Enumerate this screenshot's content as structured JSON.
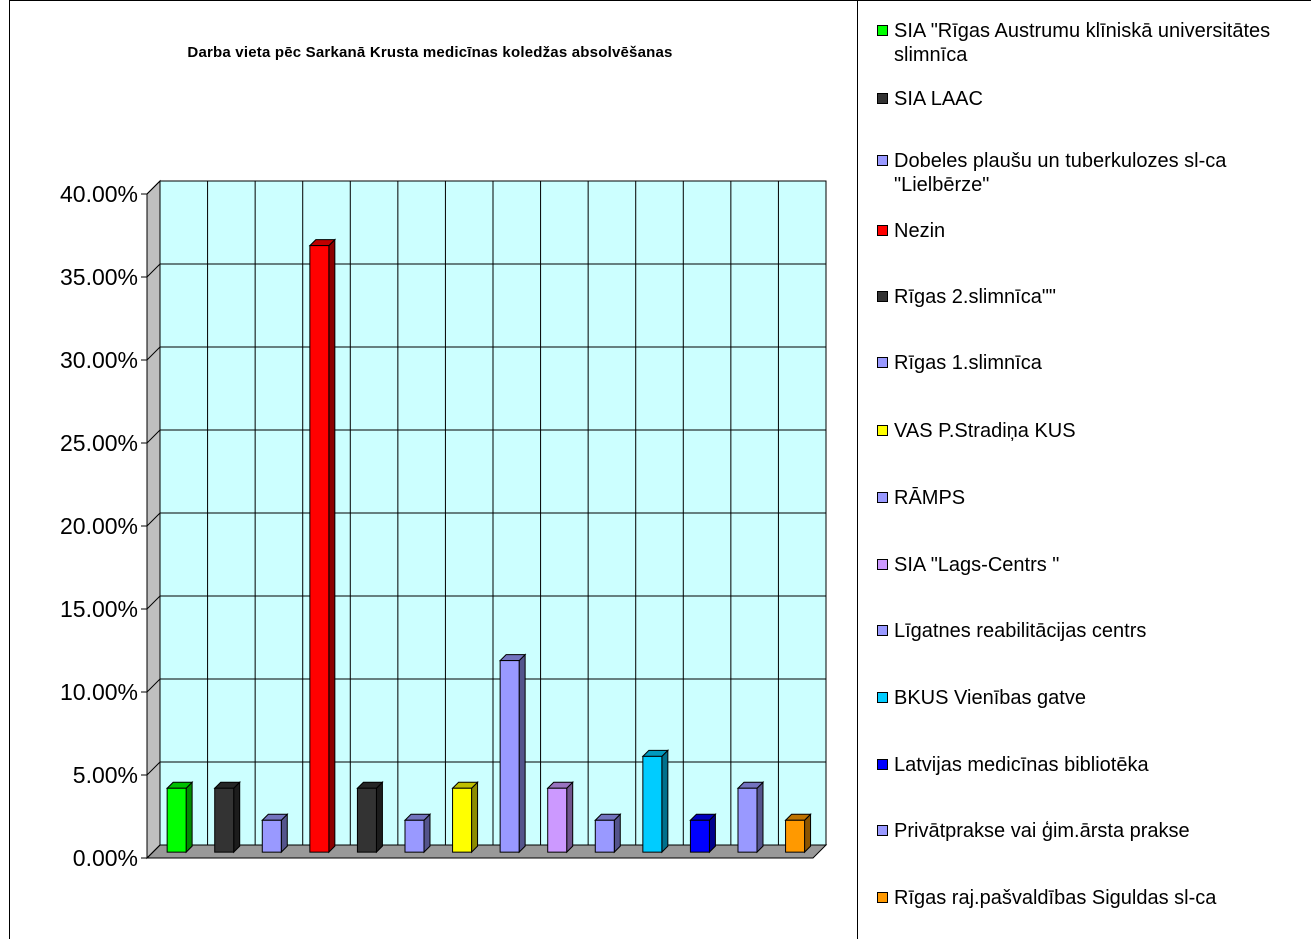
{
  "chart_data": {
    "type": "bar",
    "title": "Darba vieta pēc Sarkanā Krusta medicīnas koledžas absolvēšanas",
    "xlabel": "",
    "ylabel": "",
    "ylim": [
      0,
      40
    ],
    "yticks": [
      "0.00%",
      "5.00%",
      "10.00%",
      "15.00%",
      "20.00%",
      "25.00%",
      "30.00%",
      "35.00%",
      "40.00%"
    ],
    "grid": true,
    "legend_position": "right",
    "plot_background": "#ccffff",
    "categories": [
      "SIA \"Rīgas Austrumu klīniskā universitātes slimnīca",
      "SIA LAAC",
      "Dobeles plaušu un tuberkulozes sl-ca \"Lielbērze\"",
      "Nezin",
      "Rīgas 2.slimnīca\"\"",
      "Rīgas 1.slimnīca",
      "VAS P.Stradiņa KUS",
      "RĀMPS",
      "SIA \"Lags-Centrs \"",
      "Līgatnes reabilitācijas centrs",
      "BKUS Vienības gatve",
      "Latvijas medicīnas bibliotēka",
      "Privātprakse vai ģim.ārsta prakse",
      "Rīgas raj.pašvaldības Siguldas sl-ca"
    ],
    "values": [
      3.85,
      3.85,
      1.92,
      36.54,
      3.85,
      1.92,
      3.85,
      11.54,
      3.85,
      1.92,
      5.77,
      1.92,
      3.85,
      1.92
    ],
    "colors": [
      "#00ff00",
      "#333333",
      "#9999ff",
      "#ff0000",
      "#333333",
      "#9999ff",
      "#ffff00",
      "#9999ff",
      "#cc99ff",
      "#9999ff",
      "#00ccff",
      "#0000ff",
      "#9999ff",
      "#ff9900"
    ]
  }
}
